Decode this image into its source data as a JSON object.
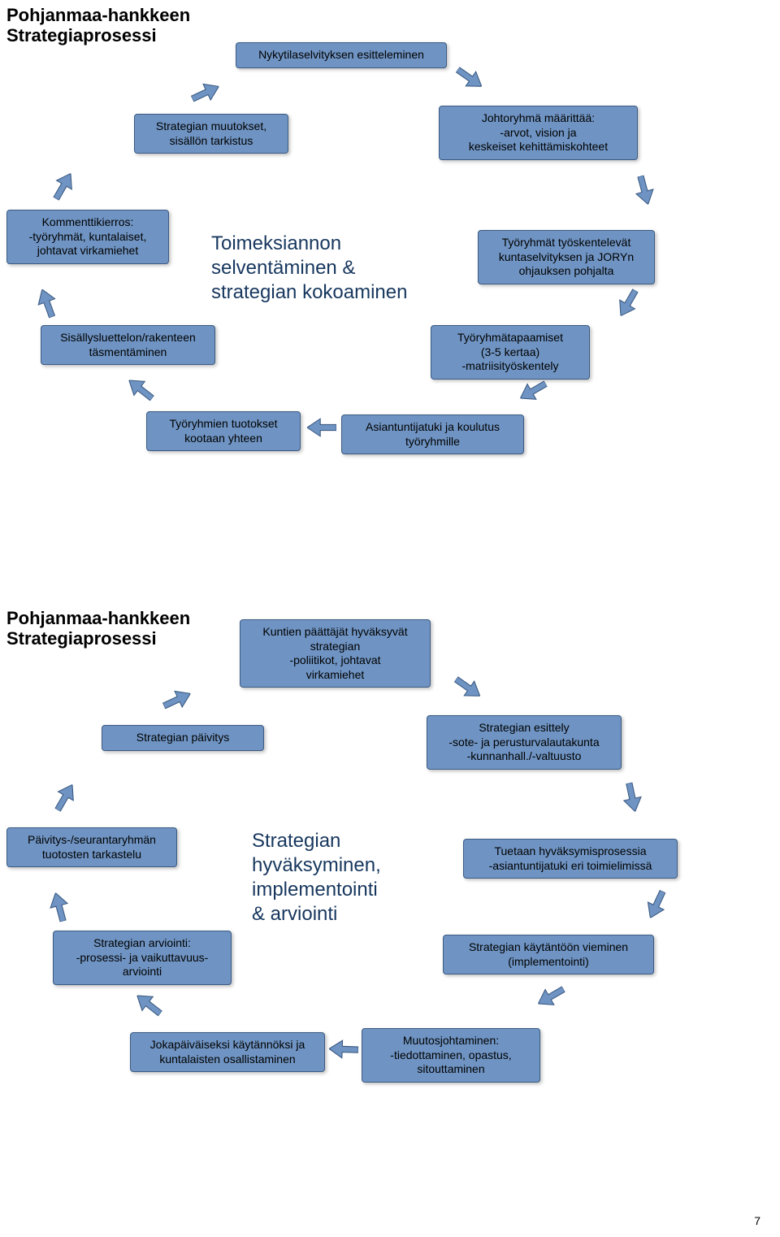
{
  "page_number": "7",
  "colors": {
    "box_fill": "#6f94c3",
    "box_border": "#3b5a82",
    "center_text": "#17375e",
    "background": "#ffffff"
  },
  "diagram1": {
    "title": "Pohjanmaa-hankkeen\nStrategiaprosessi",
    "center": "Toimeksiannon\nselventäminen &\nstrategian kokoaminen",
    "nodes": {
      "n_top": "Nykytilaselvityksen esitteleminen",
      "n_topright": "Johtoryhmä määrittää:\n-arvot, vision ja\nkeskeiset kehittämiskohteet",
      "n_right": "Työryhmät työskentelevät\nkuntaselvityksen ja JORYn\nohjauksen pohjalta",
      "n_rightlow": "Työryhmätapaamiset\n(3-5 kertaa)\n-matriisityöskentely",
      "n_bottomright": "Asiantuntijatuki ja koulutus\ntyöryhmille",
      "n_bottom": "Työryhmien tuotokset\nkootaan yhteen",
      "n_leftlow": "Sisällysluettelon/rakenteen\ntäsmentäminen",
      "n_left": "Kommenttikierros:\n-työryhmät, kuntalaiset,\njohtavat virkamiehet",
      "n_topleft": "Strategian muutokset,\nsisällön tarkistus"
    }
  },
  "diagram2": {
    "title": "Pohjanmaa-hankkeen\nStrategiaprosessi",
    "center": "Strategian\nhyväksyminen,\nimplementointi\n& arviointi",
    "nodes": {
      "n_top": "Kuntien päättäjät hyväksyvät\nstrategian\n-poliitikot, johtavat\nvirkamiehet",
      "n_topright": "Strategian esittely\n-sote- ja perusturvalautakunta\n-kunnanhall./-valtuusto",
      "n_right": "Tuetaan hyväksymisprosessia\n-asiantuntijatuki eri toimielimissä",
      "n_rightlow": "Strategian käytäntöön vieminen\n(implementointi)",
      "n_bottomright": "Muutosjohtaminen:\n-tiedottaminen, opastus,\nsitouttaminen",
      "n_bottom": "Jokapäiväiseksi käytännöksi ja\nkuntalaisten osallistaminen",
      "n_leftlow": "Strategian arviointi:\n-prosessi- ja vaikuttavuus-\narviointi",
      "n_left": "Päivitys-/seurantaryhmän\ntuotosten tarkastelu",
      "n_topleft": "Strategian päivitys"
    }
  }
}
